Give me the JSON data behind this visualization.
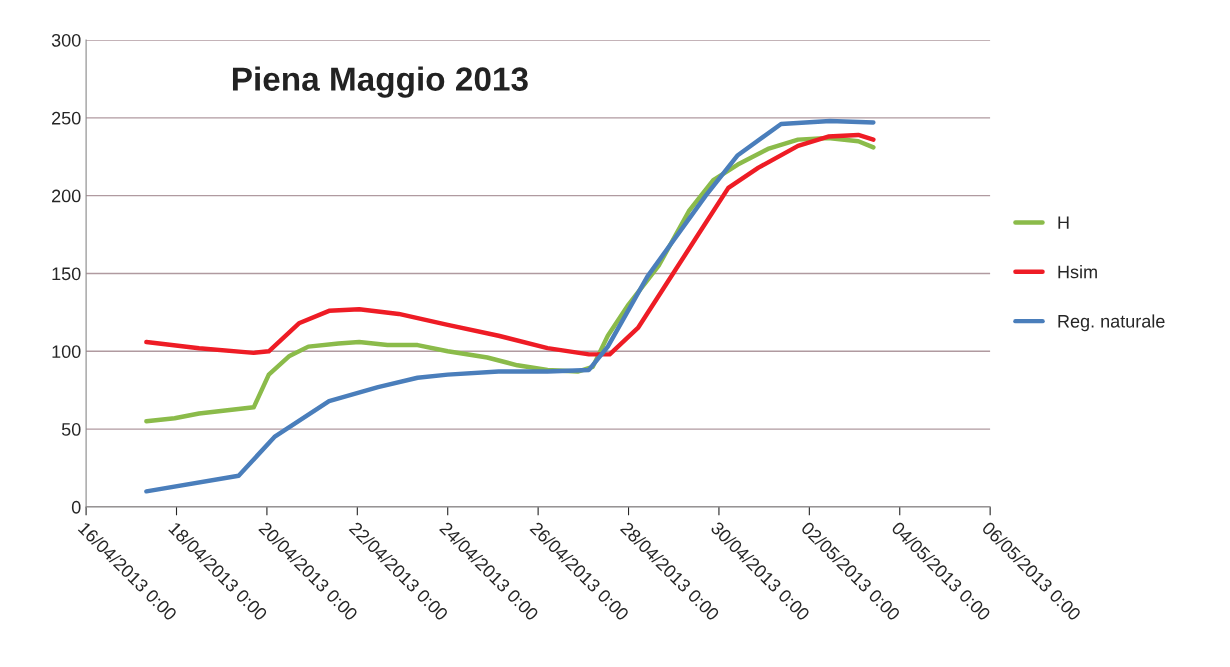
{
  "chart_data": {
    "type": "line",
    "title": "Piena Maggio 2013",
    "xlim": [
      "2013-04-16",
      "2013-05-06"
    ],
    "xticks": [
      {
        "value": "2013-04-16",
        "label": "16/04/2013 0:00"
      },
      {
        "value": "2013-04-18",
        "label": "18/04/2013 0:00"
      },
      {
        "value": "2013-04-20",
        "label": "20/04/2013 0:00"
      },
      {
        "value": "2013-04-22",
        "label": "22/04/2013 0:00"
      },
      {
        "value": "2013-04-24",
        "label": "24/04/2013 0:00"
      },
      {
        "value": "2013-04-26",
        "label": "26/04/2013 0:00"
      },
      {
        "value": "2013-04-28",
        "label": "28/04/2013 0:00"
      },
      {
        "value": "2013-04-30",
        "label": "30/04/2013 0:00"
      },
      {
        "value": "2013-05-02",
        "label": "02/05/2013 0:00"
      },
      {
        "value": "2013-05-04",
        "label": "04/05/2013 0:00"
      },
      {
        "value": "2013-05-06",
        "label": "06/05/2013 0:00"
      }
    ],
    "ylim": [
      0,
      300
    ],
    "yticks": [
      0,
      50,
      100,
      150,
      200,
      250,
      300
    ],
    "grid": "y",
    "legend": "right",
    "marker": "none",
    "line_style": "solid",
    "series": [
      {
        "name": "H",
        "color": "#8bbb4a",
        "x": [
          "2013-04-17T08:00",
          "2013-04-17T23:00",
          "2013-04-18T12:00",
          "2013-04-19T17:00",
          "2013-04-20T01:00",
          "2013-04-20T12:00",
          "2013-04-20T22:00",
          "2013-04-21T14:00",
          "2013-04-22T01:00",
          "2013-04-22T16:00",
          "2013-04-23T08:00",
          "2013-04-24T00:00",
          "2013-04-24T21:00",
          "2013-04-25T13:00",
          "2013-04-26T05:00",
          "2013-04-26T21:00",
          "2013-04-27T05:00",
          "2013-04-27T13:00",
          "2013-04-28T00:00",
          "2013-04-28T16:00",
          "2013-04-29T08:00",
          "2013-04-29T21:00",
          "2013-04-30T10:00",
          "2013-05-01T02:00",
          "2013-05-01T18:00",
          "2013-05-02T10:00",
          "2013-05-03T02:00",
          "2013-05-03T10:00"
        ],
        "values": [
          55,
          57,
          60,
          64,
          85,
          97,
          103,
          105,
          106,
          104,
          104,
          100,
          96,
          91,
          88,
          87,
          90,
          110,
          130,
          155,
          190,
          210,
          220,
          230,
          236,
          237,
          235,
          231
        ]
      },
      {
        "name": "Hsim",
        "color": "#ee1c25",
        "x": [
          "2013-04-17T08:00",
          "2013-04-18T12:00",
          "2013-04-19T17:00",
          "2013-04-20T01:00",
          "2013-04-20T17:00",
          "2013-04-21T09:00",
          "2013-04-22T01:00",
          "2013-04-22T22:00",
          "2013-04-24T00:00",
          "2013-04-25T03:00",
          "2013-04-26T05:00",
          "2013-04-27T03:00",
          "2013-04-27T14:00",
          "2013-04-28T05:00",
          "2013-04-28T21:00",
          "2013-04-29T13:00",
          "2013-04-30T05:00",
          "2013-04-30T21:00",
          "2013-05-01T18:00",
          "2013-05-02T10:00",
          "2013-05-03T02:00",
          "2013-05-03T10:00"
        ],
        "values": [
          106,
          102,
          99,
          100,
          118,
          126,
          127,
          124,
          117,
          110,
          102,
          98,
          98,
          115,
          145,
          175,
          205,
          218,
          232,
          238,
          239,
          236
        ]
      },
      {
        "name": "Reg. naturale",
        "color": "#4a7ebb",
        "x": [
          "2013-04-17T08:00",
          "2013-04-19T09:00",
          "2013-04-20T04:00",
          "2013-04-21T09:00",
          "2013-04-22T11:00",
          "2013-04-23T08:00",
          "2013-04-24T00:00",
          "2013-04-25T03:00",
          "2013-04-26T05:00",
          "2013-04-27T03:00",
          "2013-04-27T13:00",
          "2013-04-28T10:00",
          "2013-04-29T17:00",
          "2013-04-30T10:00",
          "2013-05-01T09:00",
          "2013-05-02T11:00",
          "2013-05-03T10:00"
        ],
        "values": [
          10,
          20,
          45,
          68,
          77,
          83,
          85,
          87,
          87,
          88,
          103,
          148,
          200,
          226,
          246,
          248,
          247
        ]
      }
    ]
  }
}
